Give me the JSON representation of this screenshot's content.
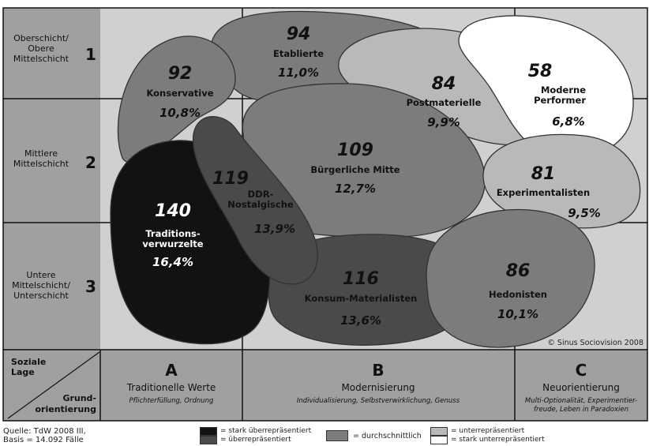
{
  "rows": [
    {
      "label_lines": [
        "Oberschicht/",
        "Obere",
        "Mittelschicht"
      ],
      "number": "1"
    },
    {
      "label_lines": [
        "Mittlere",
        "Mittelschicht"
      ],
      "number": "2"
    },
    {
      "label_lines": [
        "Untere",
        "Mittelschicht/",
        "Unterschicht"
      ],
      "number": "3"
    }
  ],
  "corner": {
    "top_lines": [
      "Soziale",
      "Lage"
    ],
    "bottom_lines": [
      "Grund-",
      "orientierung"
    ]
  },
  "columns": [
    {
      "letter": "A",
      "title": "Traditionelle Werte",
      "sub_lines": [
        "Pflichterfüllung, Ordnung"
      ]
    },
    {
      "letter": "B",
      "title": "Modernisierung",
      "sub_lines": [
        "Individualisierung, Selbstverwirklichung, Genuss"
      ]
    },
    {
      "letter": "C",
      "title": "Neuorientierung",
      "sub_lines": [
        "Multi-Optionalität, Experimentier-",
        "freude, Leben in Paradoxien"
      ]
    }
  ],
  "milieus": [
    {
      "id": "konservative",
      "number": "92",
      "name_lines": [
        "Konservative"
      ],
      "share": "10,8%",
      "category": "durchschnittlich"
    },
    {
      "id": "etablierte",
      "number": "94",
      "name_lines": [
        "Etablierte"
      ],
      "share": "11,0%",
      "category": "durchschnittlich"
    },
    {
      "id": "postmaterielle",
      "number": "84",
      "name_lines": [
        "Postmaterielle"
      ],
      "share": "9,9%",
      "category": "unterrepraesentiert"
    },
    {
      "id": "moderne-performer",
      "number": "58",
      "name_lines": [
        "Moderne",
        "Performer"
      ],
      "share": "6,8%",
      "category": "stark_unterrepraesentiert"
    },
    {
      "id": "buergerliche-mitte",
      "number": "109",
      "name_lines": [
        "Bürgerliche Mitte"
      ],
      "share": "12,7%",
      "category": "durchschnittlich"
    },
    {
      "id": "ddr-nostalgische",
      "number": "119",
      "name_lines": [
        "DDR-",
        "Nostalgische"
      ],
      "share": "13,9%",
      "category": "ueberrepraesentiert"
    },
    {
      "id": "experimentalisten",
      "number": "81",
      "name_lines": [
        "Experimentalisten"
      ],
      "share": "9,5%",
      "category": "unterrepraesentiert"
    },
    {
      "id": "traditionsverwurzelte",
      "number": "140",
      "name_lines": [
        "Traditions-",
        "verwurzelte"
      ],
      "share": "16,4%",
      "category": "stark_ueberrepraesentiert"
    },
    {
      "id": "konsum-materialisten",
      "number": "116",
      "name_lines": [
        "Konsum-Materialisten"
      ],
      "share": "13,6%",
      "category": "ueberrepraesentiert"
    },
    {
      "id": "hedonisten",
      "number": "86",
      "name_lines": [
        "Hedonisten"
      ],
      "share": "10,1%",
      "category": "durchschnittlich"
    }
  ],
  "copyright": "© Sinus Sociovision 2008",
  "source_lines": [
    "Quelle: TdW 2008 III,",
    "Basis = 14.092 Fälle"
  ],
  "legend": {
    "stark_ueberrepraesentiert": "= stark überrepräsentiert",
    "ueberrepraesentiert": "= überrepräsentiert",
    "durchschnittlich": "= durchschnittlich",
    "unterrepraesentiert": "= unterrepräsentiert",
    "stark_unterrepraesentiert": "= stark unterrepräsentiert"
  },
  "colors": {
    "stark_ueberrepraesentiert": "#121212",
    "ueberrepraesentiert": "#4a4a4a",
    "durchschnittlich": "#7c7c7c",
    "unterrepraesentiert": "#b9b9b9",
    "stark_unterrepraesentiert": "#ffffff",
    "background": "#d0d0d0",
    "side_panel": "#a0a0a0",
    "grid_line": "#111111"
  }
}
